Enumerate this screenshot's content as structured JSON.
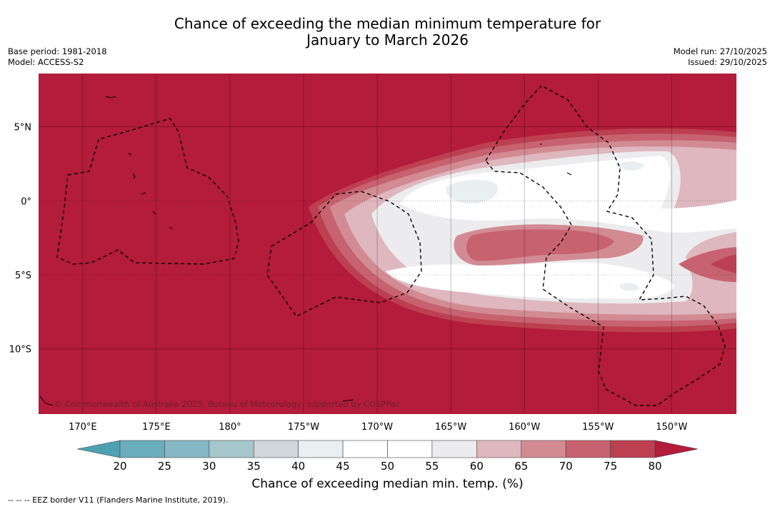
{
  "title": {
    "line1": "Chance of exceeding the median minimum temperature for",
    "line2": "January to March 2026"
  },
  "meta": {
    "base_period": "Base period: 1981-2018",
    "model": "Model: ACCESS-S2",
    "model_run": "Model run: 27/10/2025",
    "issued": "Issued: 29/10/2025"
  },
  "map": {
    "copyright": "© Commonwealth of Australia 2025, Bureau of Meteorology, supported by COSPPac",
    "lon_labels": [
      "170°E",
      "175°E",
      "180°",
      "175°W",
      "170°W",
      "165°W",
      "160°W",
      "155°W",
      "150°W"
    ],
    "lon_values": [
      170,
      175,
      180,
      185,
      190,
      195,
      200,
      205,
      210
    ],
    "lat_labels": [
      "5°N",
      "0°",
      "5°S",
      "10°S"
    ],
    "lat_values": [
      5,
      0,
      -5,
      -10
    ],
    "lon_range": [
      167.0,
      214.4
    ],
    "lat_range": [
      -14.4,
      8.6
    ],
    "dominant_color": "#b31c3a"
  },
  "colorbar": {
    "title": "Chance of exceeding median min. temp. (%)",
    "ticks": [
      "20",
      "25",
      "30",
      "35",
      "40",
      "45",
      "50",
      "55",
      "60",
      "65",
      "70",
      "75",
      "80"
    ],
    "colors": [
      "#6aaebe",
      "#86b7c5",
      "#a5c6cb",
      "#d0d6d9",
      "#e9eef1",
      "#ffffff",
      "#ffffff",
      "#ececee",
      "#dfb7be",
      "#d28b93",
      "#c76270",
      "#bc4052"
    ],
    "low_extend_color": "#4fa1b2",
    "high_extend_color": "#b31c3a"
  },
  "legend_note": "--  --  -- EEZ border V11 (Flanders Marine Institute, 2019)."
}
